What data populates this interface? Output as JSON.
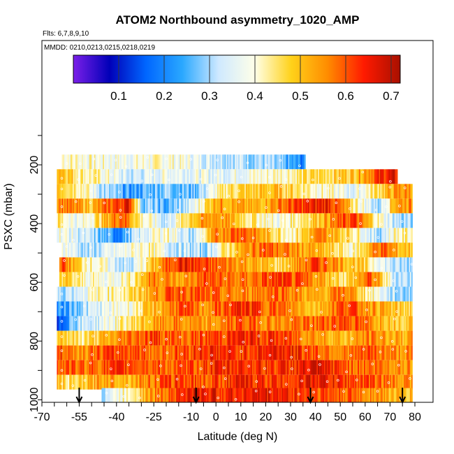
{
  "chart_data": {
    "type": "heatmap",
    "title": "ATOM2 Northbound asymmetry_1020_AMP",
    "flights_note": "Flts: 6,7,8,9,10",
    "dates_note": "MMDD: 0210,0213,0215,0218,0219",
    "xlabel": "Latitude (deg N)",
    "ylabel": "PSXC (mbar)",
    "xlim": [
      -70,
      82
    ],
    "ylim": [
      1010,
      100
    ],
    "x_ticks": [
      -70,
      -55,
      -40,
      -25,
      -10,
      0,
      10,
      20,
      30,
      40,
      50,
      60,
      70,
      80
    ],
    "x_tick_labels": [
      "-70",
      "-55",
      "-40",
      "-25",
      "-10",
      "0",
      "10",
      "20",
      "30",
      "40",
      "50",
      "60",
      "70",
      "80"
    ],
    "y_ticks": [
      200,
      400,
      600,
      800,
      1000
    ],
    "y_tick_labels": [
      "200",
      "400",
      "600",
      "800",
      "1000"
    ],
    "colorbar": {
      "ticks": [
        0.1,
        0.2,
        0.3,
        0.4,
        0.5,
        0.6,
        0.7
      ],
      "tick_labels": [
        "0.1",
        "0.2",
        "0.3",
        "0.4",
        "0.5",
        "0.6",
        "0.7"
      ],
      "range": [
        0.0,
        0.72
      ],
      "colors": [
        "#7b1fe8",
        "#0000b8",
        "#0066ff",
        "#2aa8ff",
        "#cfe9ff",
        "#ffffe8",
        "#ffd21a",
        "#ff8c00",
        "#ff1a00",
        "#a81000"
      ]
    },
    "profile_markers_lat": [
      -55,
      -8,
      38,
      75
    ],
    "rows": [
      {
        "p": 190,
        "lat_start": -62,
        "lat_end": 36,
        "segments": [
          [
            -62,
            0.42
          ],
          [
            -40,
            0.38
          ],
          [
            -20,
            0.4
          ],
          [
            0,
            0.34
          ],
          [
            20,
            0.3
          ],
          [
            34,
            0.2
          ]
        ]
      },
      {
        "p": 240,
        "lat_start": -64,
        "lat_end": 73,
        "segments": [
          [
            -64,
            0.55
          ],
          [
            -55,
            0.44
          ],
          [
            -45,
            0.4
          ],
          [
            -35,
            0.32
          ],
          [
            -20,
            0.38
          ],
          [
            0,
            0.36
          ],
          [
            20,
            0.4
          ],
          [
            36,
            0.45
          ],
          [
            55,
            0.5
          ],
          [
            68,
            0.65
          ]
        ]
      },
      {
        "p": 290,
        "lat_start": -64,
        "lat_end": 79,
        "segments": [
          [
            -64,
            0.52
          ],
          [
            -55,
            0.45
          ],
          [
            -45,
            0.3
          ],
          [
            -35,
            0.22
          ],
          [
            -20,
            0.3
          ],
          [
            -10,
            0.26
          ],
          [
            5,
            0.46
          ],
          [
            25,
            0.5
          ],
          [
            40,
            0.42
          ],
          [
            55,
            0.35
          ],
          [
            66,
            0.48
          ],
          [
            74,
            0.55
          ]
        ]
      },
      {
        "p": 340,
        "lat_start": -64,
        "lat_end": 79,
        "segments": [
          [
            -64,
            0.58
          ],
          [
            -50,
            0.5
          ],
          [
            -42,
            0.6
          ],
          [
            -35,
            0.66
          ],
          [
            -30,
            0.3
          ],
          [
            -20,
            0.24
          ],
          [
            -10,
            0.34
          ],
          [
            0,
            0.55
          ],
          [
            15,
            0.5
          ],
          [
            30,
            0.6
          ],
          [
            45,
            0.66
          ],
          [
            55,
            0.45
          ],
          [
            65,
            0.3
          ],
          [
            72,
            0.55
          ]
        ]
      },
      {
        "p": 390,
        "lat_start": -64,
        "lat_end": 79,
        "segments": [
          [
            -64,
            0.45
          ],
          [
            -55,
            0.36
          ],
          [
            -45,
            0.5
          ],
          [
            -38,
            0.62
          ],
          [
            -30,
            0.42
          ],
          [
            -20,
            0.32
          ],
          [
            -10,
            0.5
          ],
          [
            0,
            0.56
          ],
          [
            12,
            0.46
          ],
          [
            25,
            0.38
          ],
          [
            40,
            0.5
          ],
          [
            55,
            0.62
          ],
          [
            66,
            0.4
          ],
          [
            74,
            0.3
          ]
        ]
      },
      {
        "p": 440,
        "lat_start": -64,
        "lat_end": 79,
        "segments": [
          [
            -64,
            0.4
          ],
          [
            -50,
            0.3
          ],
          [
            -40,
            0.2
          ],
          [
            -30,
            0.35
          ],
          [
            -20,
            0.42
          ],
          [
            -10,
            0.3
          ],
          [
            0,
            0.55
          ],
          [
            10,
            0.62
          ],
          [
            20,
            0.5
          ],
          [
            30,
            0.42
          ],
          [
            42,
            0.56
          ],
          [
            55,
            0.45
          ],
          [
            65,
            0.3
          ],
          [
            72,
            0.42
          ]
        ]
      },
      {
        "p": 490,
        "lat_start": -62,
        "lat_end": 79,
        "segments": [
          [
            -62,
            0.4
          ],
          [
            -52,
            0.3
          ],
          [
            -40,
            0.36
          ],
          [
            -28,
            0.42
          ],
          [
            -18,
            0.34
          ],
          [
            -5,
            0.3
          ],
          [
            5,
            0.46
          ],
          [
            18,
            0.6
          ],
          [
            30,
            0.55
          ],
          [
            42,
            0.5
          ],
          [
            55,
            0.4
          ],
          [
            66,
            0.6
          ],
          [
            74,
            0.5
          ]
        ]
      },
      {
        "p": 540,
        "lat_start": -63,
        "lat_end": 79,
        "segments": [
          [
            -63,
            0.62
          ],
          [
            -55,
            0.46
          ],
          [
            -45,
            0.38
          ],
          [
            -35,
            0.3
          ],
          [
            -25,
            0.5
          ],
          [
            -15,
            0.66
          ],
          [
            -5,
            0.6
          ],
          [
            10,
            0.55
          ],
          [
            25,
            0.46
          ],
          [
            40,
            0.62
          ],
          [
            55,
            0.5
          ],
          [
            65,
            0.4
          ],
          [
            72,
            0.3
          ]
        ]
      },
      {
        "p": 590,
        "lat_start": -63,
        "lat_end": 79,
        "segments": [
          [
            -63,
            0.5
          ],
          [
            -55,
            0.42
          ],
          [
            -45,
            0.38
          ],
          [
            -35,
            0.42
          ],
          [
            -25,
            0.58
          ],
          [
            -15,
            0.52
          ],
          [
            -5,
            0.6
          ],
          [
            10,
            0.56
          ],
          [
            25,
            0.62
          ],
          [
            40,
            0.55
          ],
          [
            52,
            0.45
          ],
          [
            62,
            0.6
          ],
          [
            72,
            0.32
          ]
        ]
      },
      {
        "p": 640,
        "lat_start": -64,
        "lat_end": 79,
        "segments": [
          [
            -64,
            0.3
          ],
          [
            -55,
            0.36
          ],
          [
            -45,
            0.42
          ],
          [
            -35,
            0.44
          ],
          [
            -25,
            0.55
          ],
          [
            -15,
            0.62
          ],
          [
            -5,
            0.58
          ],
          [
            10,
            0.55
          ],
          [
            25,
            0.6
          ],
          [
            40,
            0.5
          ],
          [
            52,
            0.58
          ],
          [
            62,
            0.42
          ],
          [
            72,
            0.3
          ]
        ]
      },
      {
        "p": 690,
        "lat_start": -64,
        "lat_end": 79,
        "segments": [
          [
            -64,
            0.2
          ],
          [
            -55,
            0.3
          ],
          [
            -45,
            0.36
          ],
          [
            -35,
            0.4
          ],
          [
            -25,
            0.5
          ],
          [
            -15,
            0.6
          ],
          [
            -5,
            0.55
          ],
          [
            10,
            0.64
          ],
          [
            25,
            0.58
          ],
          [
            40,
            0.5
          ],
          [
            52,
            0.62
          ],
          [
            62,
            0.55
          ],
          [
            72,
            0.48
          ]
        ]
      },
      {
        "p": 740,
        "lat_start": -64,
        "lat_end": 79,
        "segments": [
          [
            -64,
            0.1
          ],
          [
            -58,
            0.3
          ],
          [
            -48,
            0.35
          ],
          [
            -38,
            0.42
          ],
          [
            -28,
            0.5
          ],
          [
            -18,
            0.56
          ],
          [
            -5,
            0.52
          ],
          [
            10,
            0.6
          ],
          [
            25,
            0.55
          ],
          [
            40,
            0.58
          ],
          [
            52,
            0.62
          ],
          [
            62,
            0.55
          ],
          [
            72,
            0.5
          ]
        ]
      },
      {
        "p": 790,
        "lat_start": -64,
        "lat_end": 79,
        "segments": [
          [
            -64,
            0.52
          ],
          [
            -55,
            0.44
          ],
          [
            -45,
            0.5
          ],
          [
            -35,
            0.58
          ],
          [
            -25,
            0.62
          ],
          [
            -15,
            0.58
          ],
          [
            -5,
            0.6
          ],
          [
            10,
            0.64
          ],
          [
            25,
            0.62
          ],
          [
            40,
            0.55
          ],
          [
            52,
            0.5
          ],
          [
            62,
            0.56
          ],
          [
            72,
            0.52
          ]
        ]
      },
      {
        "p": 840,
        "lat_start": -64,
        "lat_end": 79,
        "segments": [
          [
            -64,
            0.62
          ],
          [
            -55,
            0.55
          ],
          [
            -45,
            0.6
          ],
          [
            -35,
            0.62
          ],
          [
            -25,
            0.58
          ],
          [
            -15,
            0.6
          ],
          [
            -5,
            0.64
          ],
          [
            10,
            0.62
          ],
          [
            25,
            0.66
          ],
          [
            40,
            0.6
          ],
          [
            52,
            0.56
          ],
          [
            62,
            0.6
          ],
          [
            72,
            0.55
          ]
        ]
      },
      {
        "p": 890,
        "lat_start": -64,
        "lat_end": 79,
        "segments": [
          [
            -64,
            0.6
          ],
          [
            -55,
            0.58
          ],
          [
            -45,
            0.6
          ],
          [
            -35,
            0.62
          ],
          [
            -25,
            0.6
          ],
          [
            -15,
            0.58
          ],
          [
            -5,
            0.62
          ],
          [
            10,
            0.64
          ],
          [
            25,
            0.62
          ],
          [
            40,
            0.66
          ],
          [
            52,
            0.6
          ],
          [
            62,
            0.58
          ],
          [
            72,
            0.56
          ]
        ]
      },
      {
        "p": 940,
        "lat_start": -64,
        "lat_end": 79,
        "segments": [
          [
            -64,
            0.5
          ],
          [
            -58,
            0.44
          ],
          [
            -45,
            0.55
          ],
          [
            -35,
            0.52
          ],
          [
            -25,
            0.58
          ],
          [
            -15,
            0.62
          ],
          [
            -5,
            0.6
          ],
          [
            10,
            0.64
          ],
          [
            25,
            0.62
          ],
          [
            40,
            0.66
          ],
          [
            52,
            0.62
          ],
          [
            62,
            0.6
          ],
          [
            72,
            0.55
          ]
        ]
      },
      {
        "p": 985,
        "lat_start": -46,
        "lat_end": 79,
        "segments": [
          [
            -46,
            0.32
          ],
          [
            -38,
            0.4
          ],
          [
            -30,
            0.5
          ],
          [
            -20,
            0.6
          ],
          [
            -8,
            0.66
          ],
          [
            5,
            0.64
          ],
          [
            20,
            0.66
          ],
          [
            35,
            0.62
          ],
          [
            45,
            0.6
          ],
          [
            55,
            0.58
          ],
          [
            65,
            0.55
          ],
          [
            72,
            0.5
          ]
        ]
      }
    ]
  }
}
